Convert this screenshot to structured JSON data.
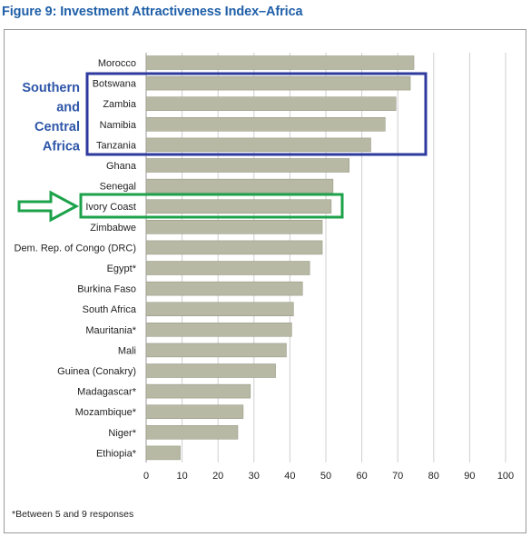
{
  "figure_title": "Figure 9: Investment Attractiveness Index–Africa",
  "footnote": "*Between 5 and 9 responses",
  "annotations": {
    "group_label_lines": [
      "Southern",
      "and",
      "Central",
      "Africa"
    ],
    "group_box_color": "#2e3a9e",
    "highlight_box_color": "#1ca24a",
    "arrow_color": "#1ca24a",
    "group_label_color": "#2e56a8"
  },
  "colors": {
    "bar": "#b7b9a4",
    "bar_edge": "#8f917c",
    "grid": "#cfcfcf",
    "title": "#1f5fa8"
  },
  "chart_data": {
    "type": "bar",
    "orientation": "horizontal",
    "title": "",
    "xlabel": "",
    "ylabel": "",
    "xlim": [
      0,
      100
    ],
    "xticks": [
      0,
      10,
      20,
      30,
      40,
      50,
      60,
      70,
      80,
      90,
      100
    ],
    "grid": "vertical",
    "categories": [
      "Morocco",
      "Botswana",
      "Zambia",
      "Namibia",
      "Tanzania",
      "Ghana",
      "Senegal",
      "Ivory Coast",
      "Zimbabwe",
      "Dem. Rep. of Congo (DRC)",
      "Egypt*",
      "Burkina Faso",
      "South Africa",
      "Mauritania*",
      "Mali",
      "Guinea (Conakry)",
      "Madagascar*",
      "Mozambique*",
      "Niger*",
      "Ethiopia*"
    ],
    "values": [
      74.5,
      73.5,
      69.5,
      66.5,
      62.5,
      56.5,
      52,
      51.5,
      49,
      49,
      45.5,
      43.5,
      41,
      40.5,
      39,
      36,
      29,
      27,
      25.5,
      9.5
    ]
  }
}
